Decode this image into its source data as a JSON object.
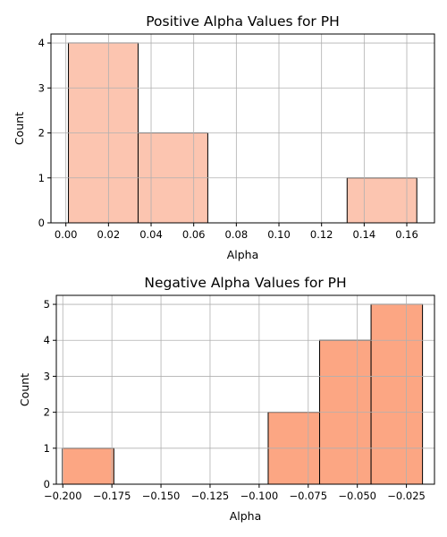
{
  "chart_data": [
    {
      "type": "bar",
      "title": "Positive Alpha Values for PH",
      "xlabel": "Alpha",
      "ylabel": "Count",
      "bins": [
        {
          "x0": 0.0012,
          "x1": 0.0339,
          "count": 4
        },
        {
          "x0": 0.0339,
          "x1": 0.0666,
          "count": 2
        },
        {
          "x0": 0.0666,
          "x1": 0.0993,
          "count": 0
        },
        {
          "x0": 0.0993,
          "x1": 0.132,
          "count": 0
        },
        {
          "x0": 0.132,
          "x1": 0.1647,
          "count": 1
        }
      ],
      "xlim": [
        -0.007,
        0.173
      ],
      "ylim": [
        0,
        4.2
      ],
      "xticks": [
        "0.00",
        "0.02",
        "0.04",
        "0.06",
        "0.08",
        "0.10",
        "0.12",
        "0.14",
        "0.16"
      ],
      "xtick_values": [
        0,
        0.02,
        0.04,
        0.06,
        0.08,
        0.1,
        0.12,
        0.14,
        0.16
      ],
      "yticks": [
        "0",
        "1",
        "2",
        "3",
        "4"
      ],
      "ytick_values": [
        0,
        1,
        2,
        3,
        4
      ],
      "grid": true,
      "bar_color": "#fcc5b0"
    },
    {
      "type": "bar",
      "title": "Negative Alpha Values for PH",
      "xlabel": "Alpha",
      "ylabel": "Count",
      "bins": [
        {
          "x0": -0.2002,
          "x1": -0.174,
          "count": 1
        },
        {
          "x0": -0.174,
          "x1": -0.1478,
          "count": 0
        },
        {
          "x0": -0.1478,
          "x1": -0.1216,
          "count": 0
        },
        {
          "x0": -0.1216,
          "x1": -0.0954,
          "count": 0
        },
        {
          "x0": -0.0954,
          "x1": -0.0692,
          "count": 2
        },
        {
          "x0": -0.0692,
          "x1": -0.043,
          "count": 4
        },
        {
          "x0": -0.043,
          "x1": -0.0168,
          "count": 5
        }
      ],
      "xlim": [
        -0.2033,
        -0.0107
      ],
      "ylim": [
        0,
        5.25
      ],
      "xticks": [
        "−0.200",
        "−0.175",
        "−0.150",
        "−0.125",
        "−0.100",
        "−0.075",
        "−0.050",
        "−0.025"
      ],
      "xtick_values": [
        -0.2,
        -0.175,
        -0.15,
        -0.125,
        -0.1,
        -0.075,
        -0.05,
        -0.025
      ],
      "yticks": [
        "0",
        "1",
        "2",
        "3",
        "4",
        "5"
      ],
      "ytick_values": [
        0,
        1,
        2,
        3,
        4,
        5
      ],
      "grid": true,
      "bar_color": "#fca683"
    }
  ]
}
